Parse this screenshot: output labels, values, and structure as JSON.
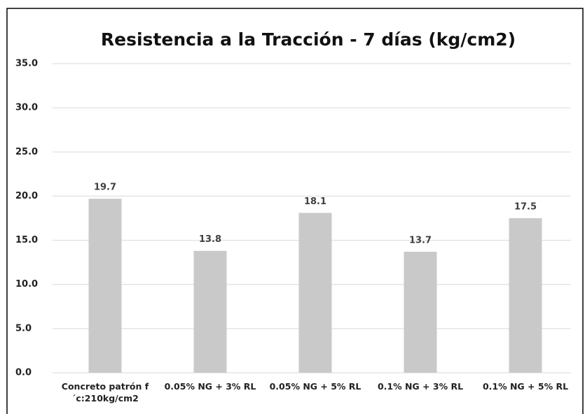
{
  "chart_data": {
    "type": "bar",
    "title": "Resistencia a la Tracción  - 7 días (kg/cm2)",
    "categories": [
      "Concreto patrón f´c:210kg/cm2",
      "0.05% NG + 3% RL",
      "0.05% NG + 5% RL",
      "0.1% NG + 3% RL",
      "0.1% NG + 5% RL"
    ],
    "values": [
      19.7,
      13.8,
      18.1,
      13.7,
      17.5
    ],
    "color": "#c9c9c9",
    "ylim": [
      0,
      35
    ],
    "yticks": [
      {
        "value": 0,
        "label": "0.0"
      },
      {
        "value": 5,
        "label": "5.0"
      },
      {
        "value": 10,
        "label": "10.0"
      },
      {
        "value": 15,
        "label": "15.0"
      },
      {
        "value": 20,
        "label": "20.0"
      },
      {
        "value": 25,
        "label": "25.0"
      },
      {
        "value": 30,
        "label": "30.0"
      },
      {
        "value": 35,
        "label": "35.0"
      }
    ],
    "grid": true
  }
}
